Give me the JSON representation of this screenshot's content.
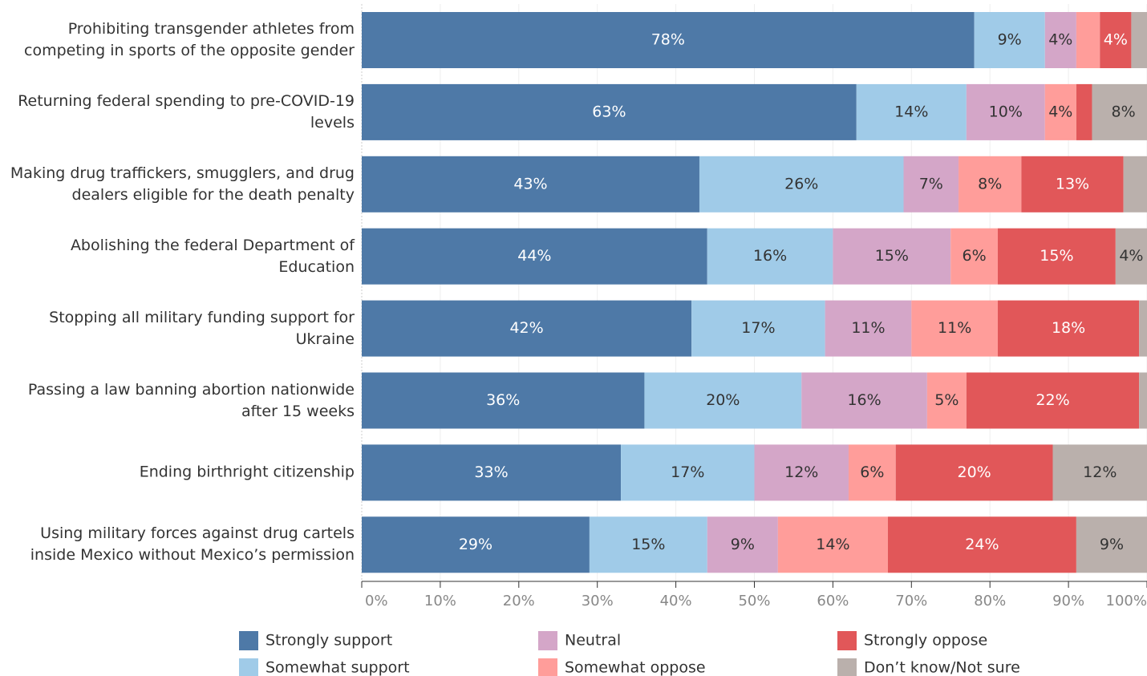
{
  "chart_data": {
    "type": "stacked-bar-horizontal",
    "categories": [
      "Prohibiting transgender athletes from competing in sports of the opposite gender",
      "Returning federal spending to pre-COVID-19 levels",
      "Making drug traffickers, smugglers, and drug dealers eligible for the death penalty",
      "Abolishing the federal Department of Education",
      "Stopping all military funding support for Ukraine",
      "Passing a law banning abortion nationwide after 15 weeks",
      "Ending birthright citizenship",
      "Using military forces against drug cartels inside Mexico without Mexico’s permission"
    ],
    "series": [
      {
        "name": "Strongly support",
        "color": "#4e79a7",
        "values": [
          78,
          63,
          43,
          44,
          42,
          36,
          33,
          29
        ],
        "value_labels": [
          "78%",
          "63%",
          "43%",
          "44%",
          "42%",
          "36%",
          "33%",
          "29%"
        ]
      },
      {
        "name": "Somewhat support",
        "color": "#a0cbe8",
        "values": [
          9,
          14,
          26,
          16,
          17,
          20,
          17,
          15
        ],
        "value_labels": [
          "9%",
          "14%",
          "26%",
          "16%",
          "17%",
          "20%",
          "17%",
          "15%"
        ]
      },
      {
        "name": "Neutral",
        "color": "#d4a6c8",
        "values": [
          4,
          10,
          7,
          15,
          11,
          16,
          12,
          9
        ],
        "value_labels": [
          "4%",
          "10%",
          "7%",
          "15%",
          "11%",
          "16%",
          "12%",
          "9%"
        ]
      },
      {
        "name": "Somewhat oppose",
        "color": "#ff9d9a",
        "values": [
          3,
          4,
          8,
          6,
          11,
          5,
          6,
          14
        ],
        "value_labels": [
          null,
          "4%",
          "8%",
          "6%",
          "11%",
          "5%",
          "6%",
          "14%"
        ]
      },
      {
        "name": "Strongly oppose",
        "color": "#e15759",
        "values": [
          4,
          2,
          13,
          15,
          18,
          22,
          20,
          24
        ],
        "value_labels": [
          "4%",
          null,
          "13%",
          "15%",
          "18%",
          "22%",
          "20%",
          "24%"
        ]
      },
      {
        "name": "Don’t know/Not sure",
        "color": "#bab0ac",
        "values": [
          2,
          8,
          3,
          4,
          2,
          1,
          12,
          9
        ],
        "value_labels": [
          null,
          "8%",
          null,
          "4%",
          null,
          null,
          "12%",
          "9%"
        ]
      }
    ],
    "xlim": [
      0,
      100
    ],
    "xticks": [
      {
        "value": 0,
        "label": "0%"
      },
      {
        "value": 10,
        "label": "10%"
      },
      {
        "value": 20,
        "label": "20%"
      },
      {
        "value": 30,
        "label": "30%"
      },
      {
        "value": 40,
        "label": "40%"
      },
      {
        "value": 50,
        "label": "50%"
      },
      {
        "value": 60,
        "label": "60%"
      },
      {
        "value": 70,
        "label": "70%"
      },
      {
        "value": 80,
        "label": "80%"
      },
      {
        "value": 90,
        "label": "90%"
      },
      {
        "value": 100,
        "label": "100%"
      }
    ],
    "grid": true,
    "legend": "bottom"
  }
}
